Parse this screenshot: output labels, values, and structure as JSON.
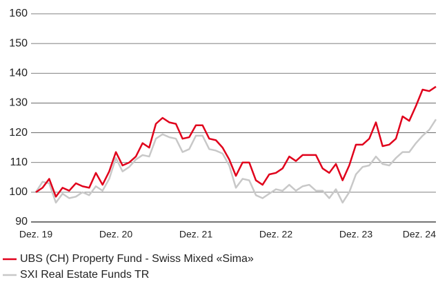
{
  "chart_data": {
    "type": "line",
    "categories": [
      "Dez. 19",
      null,
      null,
      null,
      null,
      null,
      null,
      null,
      null,
      null,
      null,
      null,
      "Dez. 20",
      null,
      null,
      null,
      null,
      null,
      null,
      null,
      null,
      null,
      null,
      null,
      "Dez. 21",
      null,
      null,
      null,
      null,
      null,
      null,
      null,
      null,
      null,
      null,
      null,
      "Dez. 22",
      null,
      null,
      null,
      null,
      null,
      null,
      null,
      null,
      null,
      null,
      null,
      "Dez. 23",
      null,
      null,
      null,
      null,
      null,
      null,
      null,
      null,
      null,
      null,
      null,
      "Dez. 24"
    ],
    "series": [
      {
        "name": "UBS (CH) Property Fund - Swiss Mixed «Sima»",
        "color": "#e0001b",
        "values": [
          100,
          101.5,
          104.5,
          98.5,
          101.5,
          100.5,
          103,
          102,
          101.5,
          106.5,
          102.5,
          107,
          113.5,
          109,
          110,
          112,
          116.5,
          115,
          123,
          125,
          123.5,
          123,
          118,
          118.5,
          122.5,
          122.5,
          118,
          117.5,
          115,
          111,
          105.5,
          110,
          110,
          104,
          102.5,
          106,
          106.5,
          108,
          112,
          110.5,
          112.5,
          112.5,
          112.5,
          108,
          106.5,
          109.5,
          104,
          109,
          116,
          116,
          118,
          123.5,
          115.5,
          116,
          118,
          125.5,
          124,
          129,
          134.5,
          134,
          135.5
        ]
      },
      {
        "name": "SXI Real Estate Funds TR",
        "color": "#c8c8c8",
        "values": [
          100,
          103.5,
          103,
          96.5,
          99.5,
          98,
          98.5,
          100,
          99,
          102,
          100.5,
          104.5,
          111.5,
          107,
          108.5,
          111,
          112.5,
          112,
          118,
          119.5,
          118.5,
          118,
          113.5,
          114.5,
          119,
          119,
          114.5,
          114,
          113,
          109,
          101.5,
          104.5,
          104,
          99,
          98,
          99.5,
          101,
          100.5,
          102.5,
          100.5,
          102,
          102.5,
          100.5,
          100.5,
          98,
          101,
          96.5,
          100,
          106,
          108.5,
          109,
          112,
          109.5,
          109,
          111.5,
          113.5,
          113.5,
          116.5,
          119,
          121,
          124.5
        ]
      }
    ],
    "ylim": [
      90,
      160
    ],
    "yticks": [
      90,
      100,
      110,
      120,
      130,
      140,
      150,
      160
    ],
    "grid": true
  }
}
